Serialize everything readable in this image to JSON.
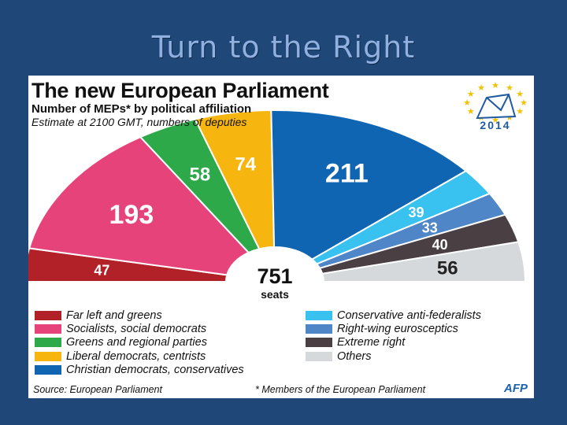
{
  "slide": {
    "title": "Turn to the Right"
  },
  "header": {
    "title": "The new European Parliament",
    "subtitle": "Number of MEPs* by political affiliation",
    "note": "Estimate at 2100 GMT, numbers of deputies"
  },
  "logo": {
    "year": "2014",
    "icon": "eu-stars-envelope-logo"
  },
  "chart_data": {
    "type": "pie",
    "layout": "hemicycle",
    "total_value": "751",
    "total_label": "seats",
    "series": [
      {
        "name": "Far left and greens",
        "value": 47,
        "color": "#b22028"
      },
      {
        "name": "Socialists, social democrats",
        "value": 193,
        "color": "#e6437a"
      },
      {
        "name": "Greens and regional parties",
        "value": 58,
        "color": "#2da94a"
      },
      {
        "name": "Liberal democrats, centrists",
        "value": 74,
        "color": "#f7b50f"
      },
      {
        "name": "Christian democrats, conservatives",
        "value": 211,
        "color": "#1065b2"
      },
      {
        "name": "Conservative anti-federalists",
        "value": 39,
        "color": "#39c2ef"
      },
      {
        "name": "Right-wing eurosceptics",
        "value": 33,
        "color": "#4f86c7"
      },
      {
        "name": "Extreme right",
        "value": 40,
        "color": "#4a3f42"
      },
      {
        "name": "Others",
        "value": 56,
        "color": "#d6d9dc"
      }
    ]
  },
  "footer": {
    "source": "Source: European Parliament",
    "note": "* Members of the European Parliament",
    "agency": "AFP"
  }
}
